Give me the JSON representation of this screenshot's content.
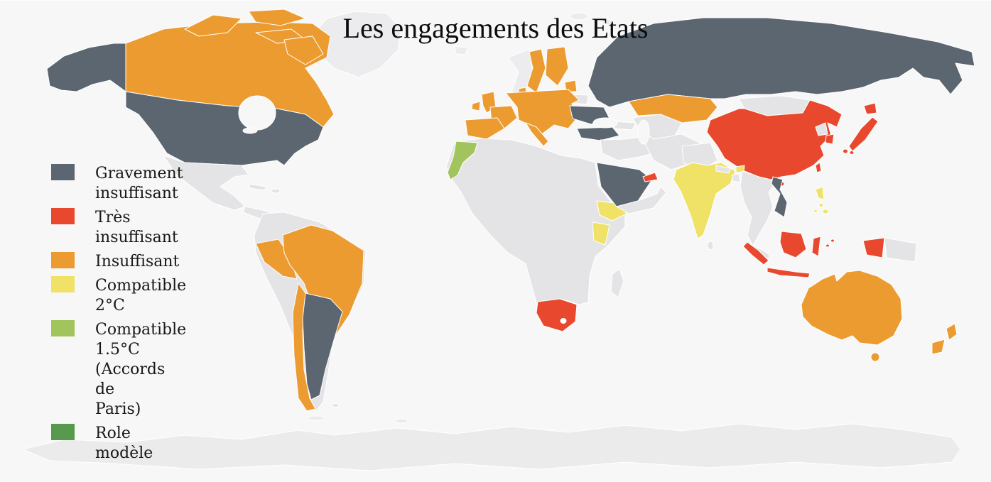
{
  "title": "Les engagements des Etats",
  "legend": {
    "items": [
      {
        "id": "gravement",
        "label": "Gravement\ninsuffisant",
        "color": "#5b6670"
      },
      {
        "id": "tres",
        "label": "Très\ninsuffisant",
        "color": "#e8492e"
      },
      {
        "id": "insuffisant",
        "label": "Insuffisant",
        "color": "#ec9b31"
      },
      {
        "id": "compatible2",
        "label": "Compatible\n2°C",
        "color": "#efe266"
      },
      {
        "id": "compatible15",
        "label": "Compatible\n1.5°C\n(Accords\nde\nParis)",
        "color": "#a2c45c"
      },
      {
        "id": "role",
        "label": "Role\nmodèle",
        "color": "#579a4e"
      }
    ]
  },
  "map": {
    "colors": {
      "ocean": "#f7f7f8",
      "land": "#e4e4e6",
      "land_light": "#ececee",
      "antarctica": "#ebebec",
      "frame": "#dcdddd",
      "border": "#ffffff"
    },
    "countries": {
      "alaska": "gravement",
      "usa": "gravement",
      "argentina": "gravement",
      "russia": "gravement",
      "ukraine": "gravement",
      "turkey": "gravement",
      "saudi_arabia": "gravement",
      "vietnam": "gravement",
      "china": "tres",
      "taiwan": "tres",
      "hainan": "tres",
      "japan_hokkaido": "tres",
      "japan_honshu": "tres",
      "japan_kyushu": "tres",
      "japan_shikoku": "tres",
      "south_korea": "tres",
      "uae": "tres",
      "south_africa": "tres",
      "singapore": "tres",
      "indonesia_sumatra": "tres",
      "indonesia_java": "tres",
      "indonesia_borneo": "tres",
      "indonesia_sulawesi": "tres",
      "indonesia_moluccas1": "tres",
      "indonesia_moluccas2": "tres",
      "indonesia_papua": "tres",
      "canada": "insuffisant",
      "canada_islands1": "insuffisant",
      "canada_islands2": "insuffisant",
      "canada_islands3": "insuffisant",
      "canada_baffin": "insuffisant",
      "iberia": "insuffisant",
      "france": "insuffisant",
      "uk": "insuffisant",
      "ireland": "insuffisant",
      "central_europe": "insuffisant",
      "italy": "insuffisant",
      "sweden": "insuffisant",
      "finland": "insuffisant",
      "denmark": "insuffisant",
      "baltics": "insuffisant",
      "kazakhstan": "insuffisant",
      "brazil": "insuffisant",
      "peru": "insuffisant",
      "chile": "insuffisant",
      "australia": "insuffisant",
      "tasmania": "insuffisant",
      "new_zealand_north": "insuffisant",
      "new_zealand_south": "insuffisant",
      "india": "compatible2",
      "bhutan": "compatible2",
      "ethiopia": "compatible2",
      "kenya": "compatible2",
      "costa_rica": "compatible2",
      "philippines_luzon": "compatible2",
      "philippines_visayas": "compatible2",
      "philippines_mindanao": "compatible2",
      "philippines_palawan": "compatible2",
      "morocco": "compatible15"
    }
  }
}
